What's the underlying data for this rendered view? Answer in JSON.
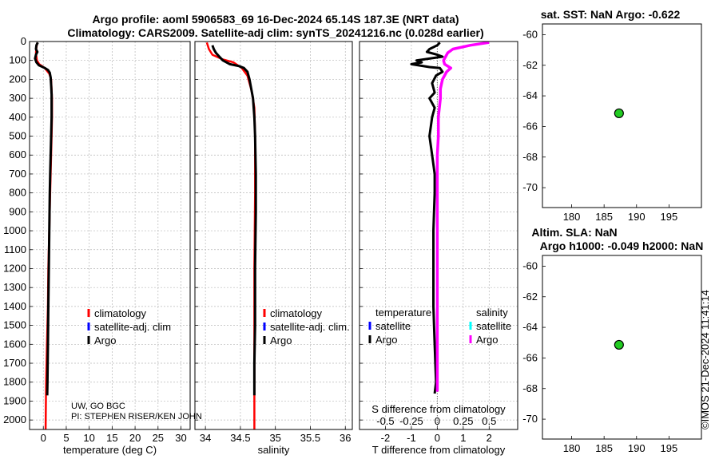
{
  "header": {
    "title_line1": "Argo profile: aoml 5906583_69 16-Dec-2024 65.14S 187.3E (NRT data)",
    "title_line2": "Climatology: CARS2009. Satellite-adj clim: synTS_20241216.nc (0.028d earlier)"
  },
  "credits": {
    "line1": "UW, GO BGC",
    "line2": "PI: STEPHEN RISER/KEN JOHN"
  },
  "stamp": "©IMOS 21-Dec-2024 11:41:14",
  "colors": {
    "argo": "#000000",
    "climatology": "#ff0000",
    "satellite": "#0000ff",
    "salinity_argo": "#ff00ff",
    "salinity_satellite": "#00ffff",
    "marker": "#22cc22"
  },
  "chart_data": [
    {
      "id": "temperature",
      "type": "line",
      "xlabel": "temperature (deg C)",
      "ylabel": "",
      "xlim": [
        -3,
        32
      ],
      "ylim": [
        2050,
        0
      ],
      "xticks": [
        0,
        5,
        10,
        15,
        20,
        25,
        30
      ],
      "yticks": [
        0,
        100,
        200,
        300,
        400,
        500,
        600,
        700,
        800,
        900,
        1000,
        1100,
        1200,
        1300,
        1400,
        1500,
        1600,
        1700,
        1800,
        1900,
        2000
      ],
      "grid": true,
      "legend": {
        "position": "lower-middle",
        "entries": [
          "climatology",
          "satellite-adj. clim",
          "Argo"
        ]
      },
      "series": [
        {
          "name": "Argo",
          "color": "#000000",
          "points": [
            [
              -1.2,
              5
            ],
            [
              -1.5,
              20
            ],
            [
              -1.6,
              40
            ],
            [
              -1.3,
              55
            ],
            [
              -1.6,
              70
            ],
            [
              -1.8,
              90
            ],
            [
              -1.5,
              110
            ],
            [
              -1.0,
              125
            ],
            [
              0.3,
              140
            ],
            [
              1.0,
              150
            ],
            [
              1.4,
              165
            ],
            [
              1.6,
              190
            ],
            [
              1.7,
              230
            ],
            [
              1.8,
              280
            ],
            [
              1.8,
              400
            ],
            [
              1.7,
              500
            ],
            [
              1.6,
              600
            ],
            [
              1.5,
              700
            ],
            [
              1.4,
              800
            ],
            [
              1.3,
              1000
            ],
            [
              1.2,
              1200
            ],
            [
              1.1,
              1400
            ],
            [
              1.0,
              1600
            ],
            [
              0.9,
              1800
            ],
            [
              0.85,
              1870
            ]
          ]
        },
        {
          "name": "climatology",
          "color": "#ff0000",
          "points": [
            [
              -1.3,
              5
            ],
            [
              -1.5,
              30
            ],
            [
              -1.6,
              60
            ],
            [
              -1.4,
              100
            ],
            [
              -0.9,
              120
            ],
            [
              0.3,
              140
            ],
            [
              1.3,
              170
            ],
            [
              1.7,
              200
            ],
            [
              1.9,
              300
            ],
            [
              1.9,
              400
            ],
            [
              1.8,
              500
            ],
            [
              1.7,
              600
            ],
            [
              1.5,
              800
            ],
            [
              1.3,
              1000
            ],
            [
              1.1,
              1200
            ],
            [
              1.0,
              1400
            ],
            [
              0.8,
              1600
            ],
            [
              0.6,
              1800
            ],
            [
              0.5,
              2050
            ]
          ]
        }
      ]
    },
    {
      "id": "salinity",
      "type": "line",
      "xlabel": "salinity",
      "ylabel": "",
      "xlim": [
        33.85,
        36.1
      ],
      "ylim": [
        2050,
        0
      ],
      "xticks": [
        34,
        34.5,
        35,
        35.5,
        36
      ],
      "grid": true,
      "legend": {
        "position": "lower-right",
        "entries": [
          "climatology",
          "satellite-adj. clim.",
          "Argo"
        ]
      },
      "series": [
        {
          "name": "Argo",
          "color": "#000000",
          "points": [
            [
              34.1,
              20
            ],
            [
              34.12,
              40
            ],
            [
              34.15,
              60
            ],
            [
              34.2,
              80
            ],
            [
              34.25,
              100
            ],
            [
              34.35,
              120
            ],
            [
              34.48,
              130
            ],
            [
              34.55,
              140
            ],
            [
              34.6,
              160
            ],
            [
              34.63,
              200
            ],
            [
              34.68,
              300
            ],
            [
              34.7,
              400
            ],
            [
              34.71,
              500
            ],
            [
              34.72,
              700
            ],
            [
              34.72,
              900
            ],
            [
              34.71,
              1200
            ],
            [
              34.71,
              1500
            ],
            [
              34.7,
              1700
            ],
            [
              34.7,
              1870
            ]
          ]
        },
        {
          "name": "climatology",
          "color": "#ff0000",
          "points": [
            [
              34.02,
              5
            ],
            [
              34.05,
              40
            ],
            [
              34.1,
              70
            ],
            [
              34.25,
              95
            ],
            [
              34.4,
              110
            ],
            [
              34.52,
              140
            ],
            [
              34.6,
              180
            ],
            [
              34.66,
              260
            ],
            [
              34.7,
              350
            ],
            [
              34.71,
              500
            ],
            [
              34.71,
              800
            ],
            [
              34.7,
              1200
            ],
            [
              34.7,
              1600
            ],
            [
              34.7,
              2050
            ]
          ]
        }
      ]
    },
    {
      "id": "difference",
      "type": "line",
      "xlabel": "T difference from climatology",
      "x2label": "S difference from climatology",
      "xlim": [
        -3,
        3.1
      ],
      "x2lim": [
        -0.75,
        0.775
      ],
      "ylim": [
        2050,
        0
      ],
      "xticks": [
        -2,
        -1,
        0,
        1,
        2
      ],
      "x2ticks": [
        -0.5,
        -0.25,
        0,
        0.25,
        0.5
      ],
      "x2ticklabels": [
        "-0.5",
        "-0.25",
        "0",
        "0.25",
        "0.5"
      ],
      "grid": true,
      "legend": {
        "position": "lower",
        "temperature_header": "temperature",
        "salinity_header": "salinity",
        "temperature_entries": [
          "satellite",
          "Argo"
        ],
        "salinity_entries": [
          "satellite",
          "Argo"
        ]
      },
      "series": [
        {
          "name": "T diff (Argo)",
          "axis": "T",
          "color": "#000000",
          "points": [
            [
              0.1,
              5
            ],
            [
              0.0,
              20
            ],
            [
              -0.3,
              40
            ],
            [
              -0.4,
              55
            ],
            [
              0.0,
              70
            ],
            [
              0.2,
              80
            ],
            [
              -0.8,
              100
            ],
            [
              -0.6,
              110
            ],
            [
              -1.0,
              120
            ],
            [
              -0.3,
              135
            ],
            [
              0.1,
              140
            ],
            [
              0.2,
              160
            ],
            [
              -0.05,
              180
            ],
            [
              -0.2,
              220
            ],
            [
              -0.1,
              270
            ],
            [
              -0.3,
              300
            ],
            [
              -0.1,
              350
            ],
            [
              -0.2,
              400
            ],
            [
              -0.3,
              500
            ],
            [
              -0.2,
              600
            ],
            [
              -0.1,
              700
            ],
            [
              -0.1,
              800
            ],
            [
              -0.15,
              1000
            ],
            [
              -0.15,
              1200
            ],
            [
              -0.15,
              1400
            ],
            [
              -0.1,
              1600
            ],
            [
              -0.05,
              1800
            ],
            [
              -0.1,
              1860
            ]
          ]
        },
        {
          "name": "S diff (Argo)",
          "axis": "S",
          "color": "#ff00ff",
          "points": [
            [
              0.5,
              5
            ],
            [
              0.32,
              20
            ],
            [
              0.15,
              40
            ],
            [
              0.1,
              60
            ],
            [
              0.08,
              80
            ],
            [
              0.06,
              100
            ],
            [
              0.07,
              120
            ],
            [
              0.13,
              140
            ],
            [
              0.09,
              160
            ],
            [
              0.05,
              200
            ],
            [
              0.03,
              250
            ],
            [
              0.03,
              300
            ],
            [
              0.02,
              350
            ],
            [
              0.01,
              400
            ],
            [
              0.01,
              500
            ],
            [
              0.0,
              600
            ],
            [
              0.0,
              700
            ],
            [
              0.0,
              900
            ],
            [
              0.0,
              1200
            ],
            [
              0.0,
              1500
            ],
            [
              0.0,
              1700
            ],
            [
              0.0,
              1850
            ]
          ]
        }
      ]
    },
    {
      "id": "sst_map",
      "type": "scatter",
      "title": "sat. SST: NaN Argo: -0.622",
      "xlim": [
        175.5,
        200
      ],
      "ylim": [
        -71.3,
        -59.3
      ],
      "xticks": [
        180,
        185,
        190,
        195
      ],
      "yticks": [
        -60,
        -62,
        -64,
        -66,
        -68,
        -70
      ],
      "grid": false,
      "points": [
        {
          "x": 187.3,
          "y": -65.14
        }
      ]
    },
    {
      "id": "sla_map",
      "type": "scatter",
      "title_line1": "Altim. SLA: NaN",
      "title_line2": "Argo h1000: -0.049 h2000: NaN",
      "xlim": [
        175.5,
        200
      ],
      "ylim": [
        -71.3,
        -59.3
      ],
      "xticks": [
        180,
        185,
        190,
        195
      ],
      "yticks": [
        -60,
        -62,
        -64,
        -66,
        -68,
        -70
      ],
      "grid": false,
      "points": [
        {
          "x": 187.3,
          "y": -65.14
        }
      ]
    }
  ]
}
